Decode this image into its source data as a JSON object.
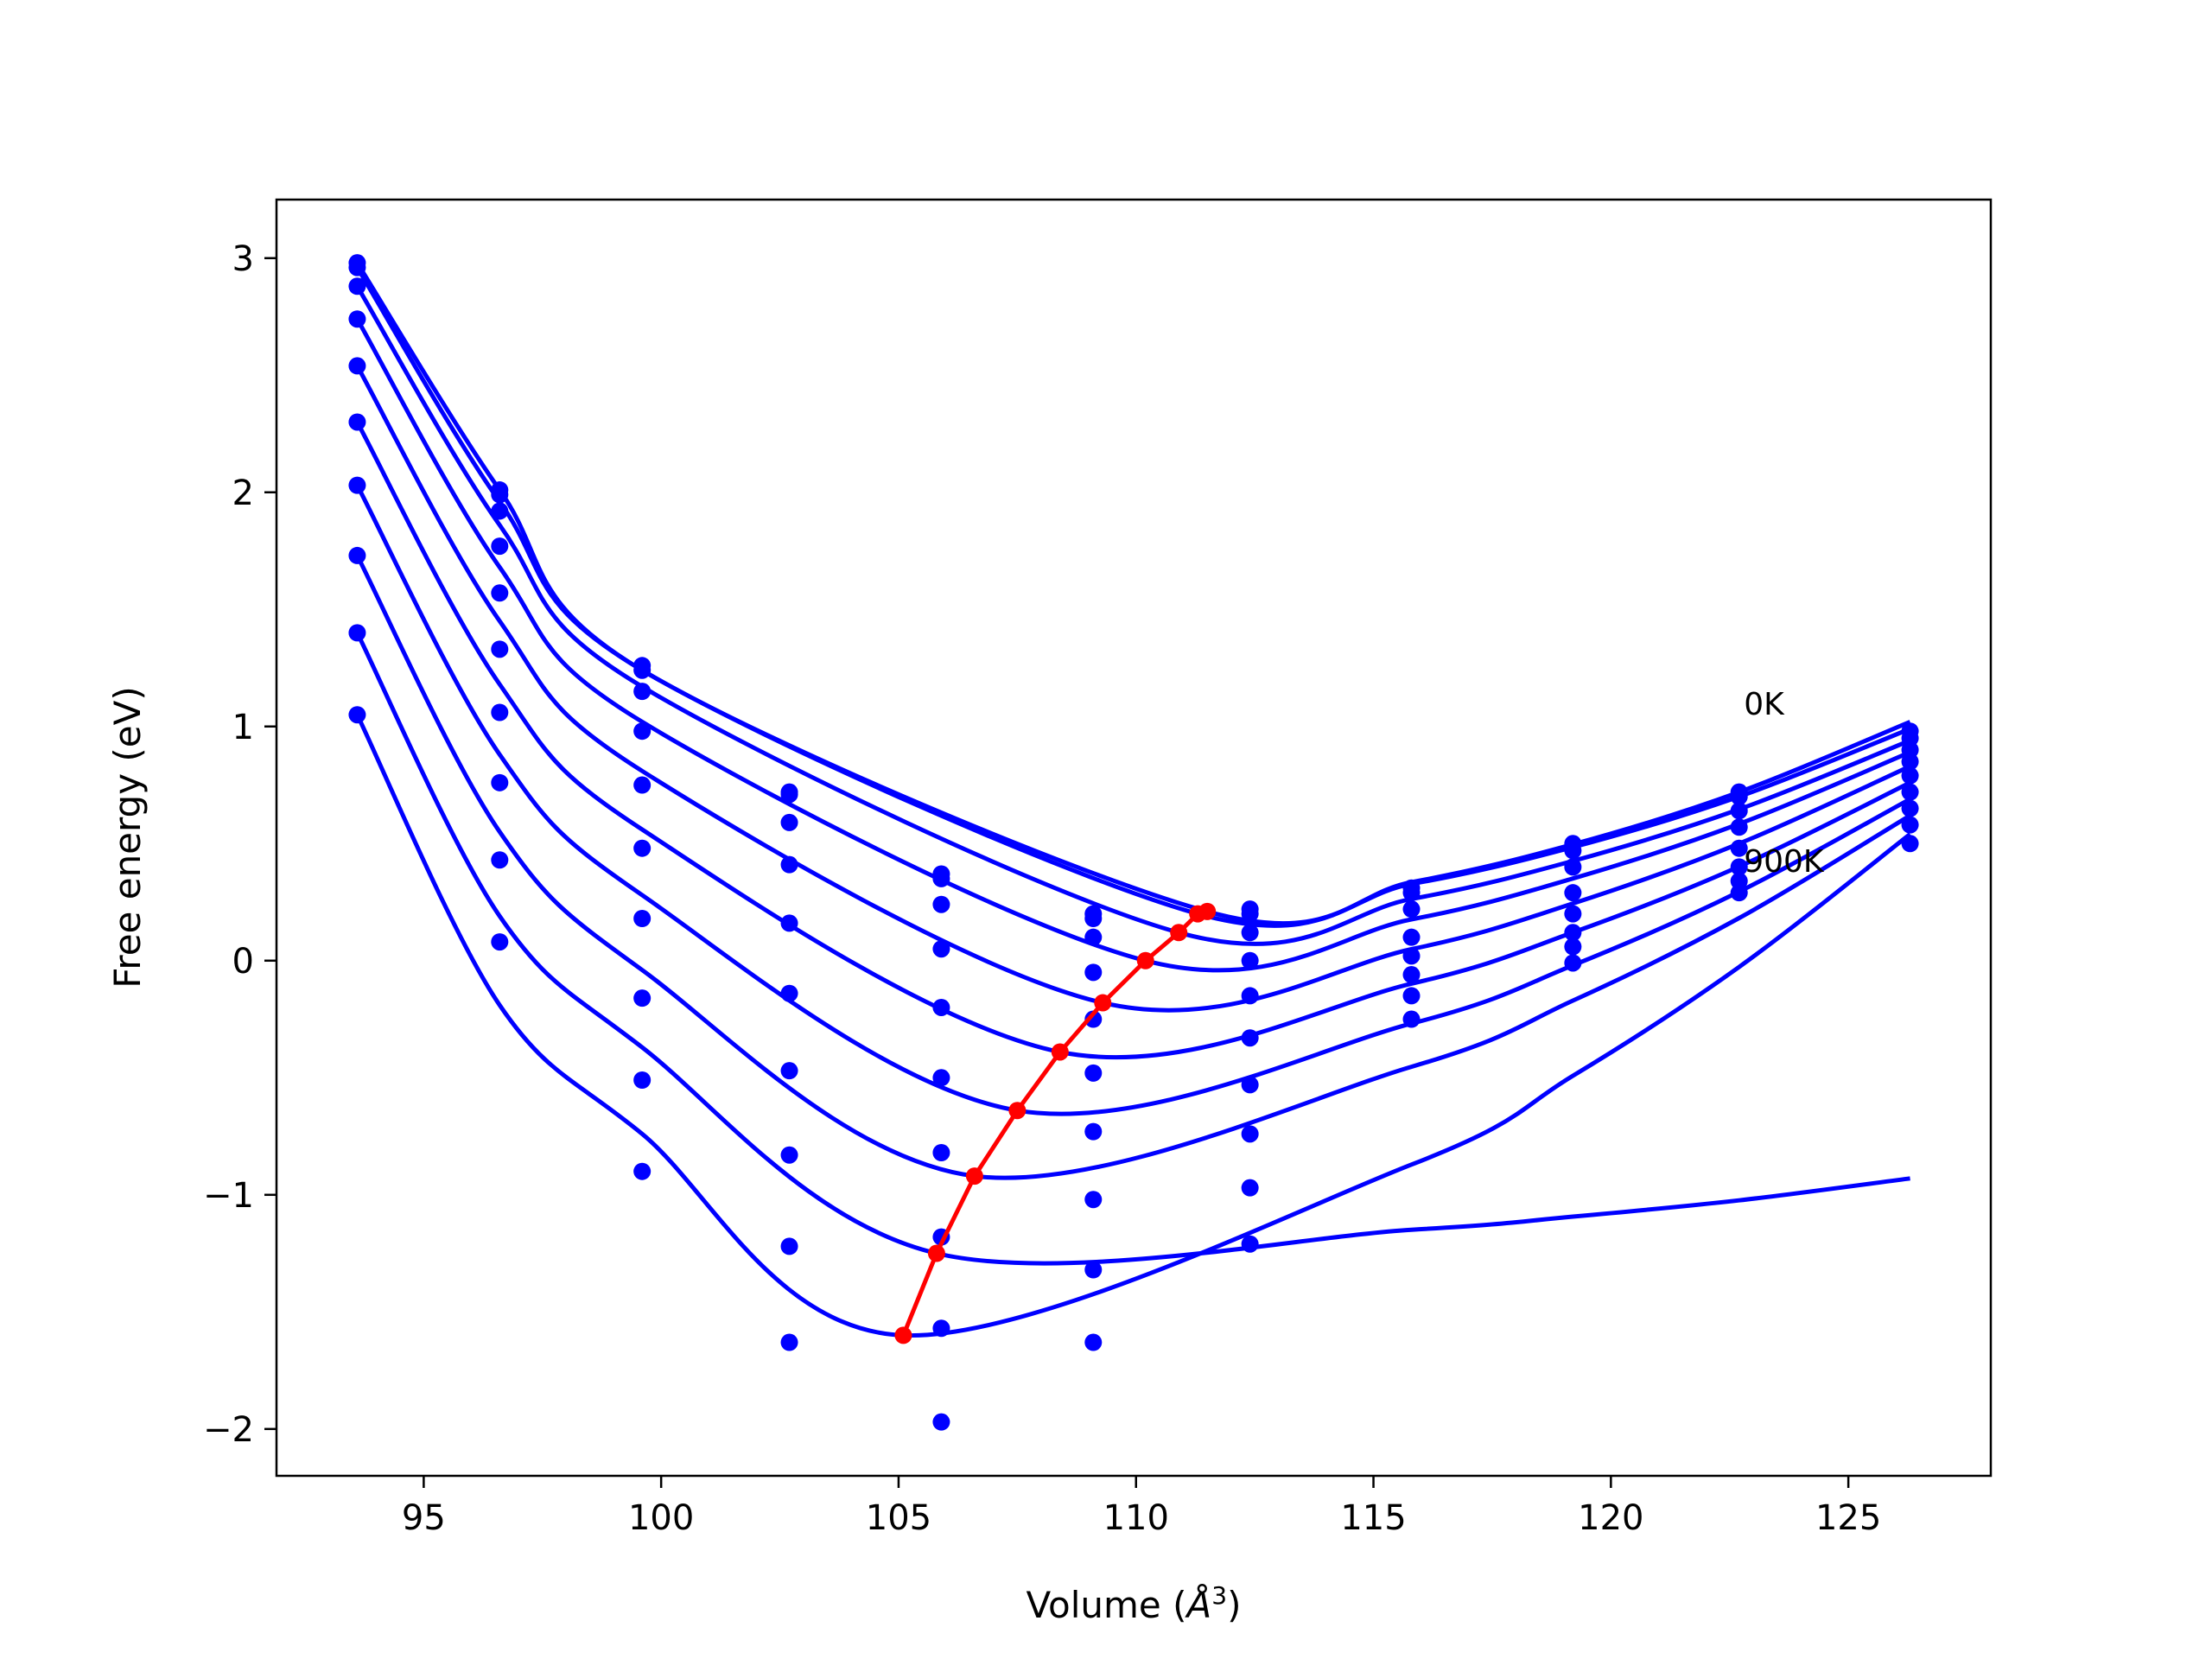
{
  "chart_data": {
    "type": "line",
    "xlabel_prefix": "Volume (",
    "xlabel_unit": "Å",
    "xlabel_exp": "3",
    "xlabel_suffix": ")",
    "ylabel": "Free energy (eV)",
    "xlim": [
      91.9,
      128.0
    ],
    "ylim": [
      -2.2,
      3.25
    ],
    "xticks": [
      95,
      100,
      105,
      110,
      115,
      120,
      125
    ],
    "xtick_labels": [
      "95",
      "100",
      "105",
      "110",
      "115",
      "120",
      "125"
    ],
    "yticks": [
      -2,
      -1,
      0,
      1,
      2,
      3
    ],
    "ytick_labels": [
      "−2",
      "−1",
      "0",
      "1",
      "2",
      "3"
    ],
    "annotations": [
      {
        "text": "0K",
        "x": 122.8,
        "y": 1.05
      },
      {
        "text": "900K",
        "x": 122.8,
        "y": 0.38
      }
    ],
    "fit_color": "#0000ff",
    "minima_color": "#ff0000",
    "volumes": [
      93.6,
      96.6,
      99.6,
      102.7,
      105.9,
      109.1,
      112.4,
      115.8,
      119.2,
      122.7,
      126.3
    ],
    "series": [
      {
        "values": [
          2.98,
          2.01,
          1.26,
          0.72,
          0.37,
          0.2,
          0.22,
          0.31,
          0.5,
          0.72,
          0.98
        ],
        "minimum": [
          111.5,
          0.21
        ]
      },
      {
        "values": [
          2.96,
          1.99,
          1.24,
          0.71,
          0.35,
          0.18,
          0.2,
          0.29,
          0.47,
          0.7,
          0.95
        ],
        "minimum": [
          111.3,
          0.2
        ]
      },
      {
        "values": [
          2.88,
          1.92,
          1.15,
          0.59,
          0.24,
          0.1,
          0.12,
          0.22,
          0.4,
          0.64,
          0.9
        ],
        "minimum": [
          110.9,
          0.12
        ]
      },
      {
        "values": [
          2.74,
          1.77,
          0.98,
          0.41,
          0.05,
          -0.05,
          0.0,
          0.1,
          0.29,
          0.57,
          0.85
        ],
        "minimum": [
          110.2,
          0.0
        ]
      },
      {
        "values": [
          2.54,
          1.57,
          0.75,
          0.16,
          -0.2,
          -0.25,
          -0.15,
          0.02,
          0.2,
          0.48,
          0.79
        ],
        "minimum": [
          109.3,
          -0.18
        ]
      },
      {
        "values": [
          2.3,
          1.33,
          0.48,
          -0.14,
          -0.5,
          -0.48,
          -0.33,
          -0.06,
          0.12,
          0.4,
          0.72
        ],
        "minimum": [
          108.4,
          -0.39
        ]
      },
      {
        "values": [
          2.03,
          1.06,
          0.18,
          -0.47,
          -0.82,
          -0.73,
          -0.53,
          -0.15,
          0.06,
          0.34,
          0.65
        ],
        "minimum": [
          107.5,
          -0.64
        ]
      },
      {
        "values": [
          1.73,
          0.76,
          -0.16,
          -0.83,
          -1.18,
          -1.02,
          -0.74,
          -0.25,
          -0.01,
          0.29,
          0.58
        ],
        "minimum": [
          106.6,
          -0.92
        ]
      },
      {
        "values": [
          1.4,
          0.43,
          -0.51,
          -1.22,
          -1.57,
          -1.32,
          -0.97,
          null,
          null,
          null,
          null
        ],
        "minimum": [
          105.8,
          -1.25
        ]
      },
      {
        "values": [
          1.05,
          0.08,
          -0.9,
          -1.63,
          -1.97,
          -1.63,
          -1.21,
          null,
          null,
          null,
          0.5
        ],
        "minimum": [
          105.1,
          -1.6
        ]
      }
    ]
  }
}
